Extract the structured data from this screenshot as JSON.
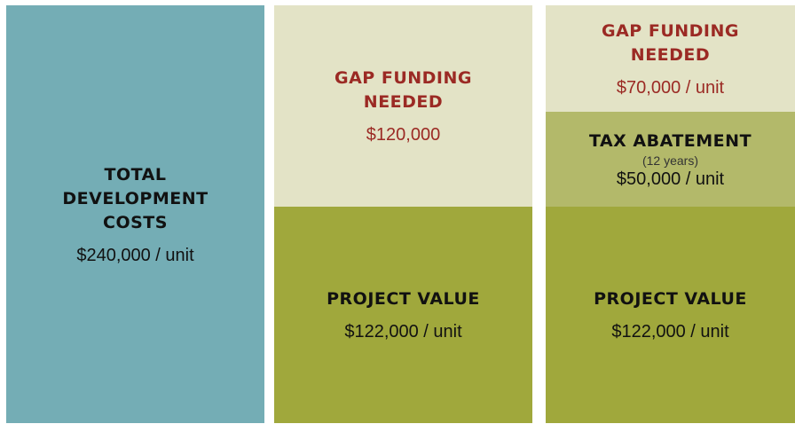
{
  "columns": [
    {
      "blocks": [
        {
          "title": "TOTAL DEVELOPMENT COSTS",
          "value": "$240,000 / unit"
        }
      ]
    },
    {
      "blocks": [
        {
          "title": "GAP FUNDING NEEDED",
          "value": "$120,000"
        },
        {
          "title": "PROJECT VALUE",
          "value": "$122,000 / unit"
        }
      ]
    },
    {
      "blocks": [
        {
          "title": "GAP FUNDING NEEDED",
          "value": "$70,000 / unit"
        },
        {
          "title": "TAX ABATEMENT",
          "note": "(12 years)",
          "value": "$50,000 / unit"
        },
        {
          "title": "PROJECT VALUE",
          "value": "$122,000 / unit"
        }
      ]
    }
  ]
}
